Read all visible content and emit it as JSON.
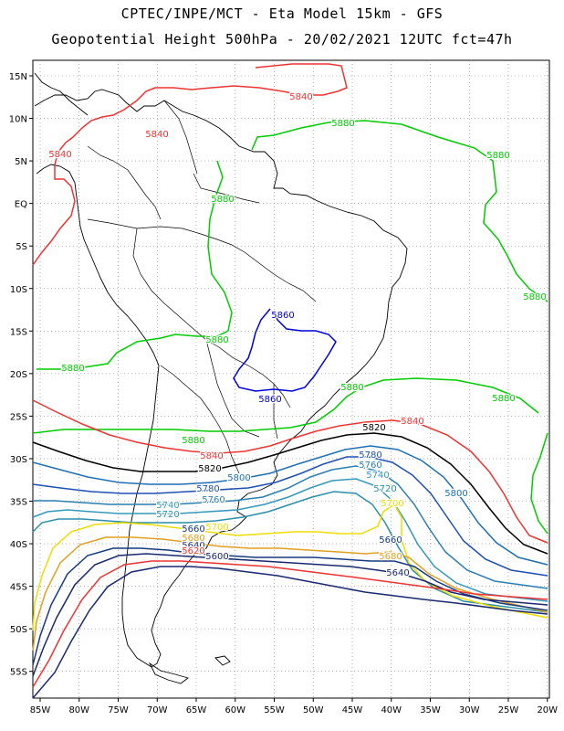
{
  "title_line1": "CPTEC/INPE/MCT  -  Eta Model 15km  -  GFS",
  "title_line2": "Geopotential Height 500hPa  -  20/02/2021 12UTC fct=47h",
  "lat_labels": [
    "15N",
    "10N",
    "5N",
    "EQ",
    "5S",
    "10S",
    "15S",
    "20S",
    "25S",
    "30S",
    "35S",
    "40S",
    "45S",
    "50S",
    "55S"
  ],
  "lon_labels": [
    "85W",
    "80W",
    "75W",
    "70W",
    "65W",
    "60W",
    "55W",
    "50W",
    "45W",
    "40W",
    "35W",
    "30W",
    "25W",
    "20W"
  ],
  "contour_colors": {
    "5880": "#00cc00",
    "5860": "#0000dd",
    "5840": "#ee3333",
    "5820": "#000000",
    "5800": "#1f6fb4",
    "5780": "#1f4fb4",
    "5760": "#2a7fb0",
    "5740": "#3399bb",
    "5720": "#2a8fa8",
    "5700": "#eedd00",
    "5680": "#e0a020",
    "5660": "#163a80",
    "5640": "#1a2870"
  },
  "contour_labels": [
    {
      "text": "5840",
      "color": "#ee3333"
    },
    {
      "text": "5840",
      "color": "#ee3333"
    },
    {
      "text": "5840",
      "color": "#ee3333"
    },
    {
      "text": "5880",
      "color": "#00cc00"
    },
    {
      "text": "5880",
      "color": "#00cc00"
    },
    {
      "text": "5880",
      "color": "#00cc00"
    },
    {
      "text": "5880",
      "color": "#00cc00"
    },
    {
      "text": "5880",
      "color": "#00cc00"
    },
    {
      "text": "5880",
      "color": "#00cc00"
    },
    {
      "text": "5880",
      "color": "#00cc00"
    },
    {
      "text": "5880",
      "color": "#00cc00"
    },
    {
      "text": "5880",
      "color": "#00cc00"
    },
    {
      "text": "5860",
      "color": "#0000dd"
    },
    {
      "text": "5860",
      "color": "#0000dd"
    },
    {
      "text": "5840",
      "color": "#ee3333"
    },
    {
      "text": "5820",
      "color": "#000000"
    },
    {
      "text": "5840",
      "color": "#ee3333"
    },
    {
      "text": "5820",
      "color": "#000000"
    },
    {
      "text": "5800",
      "color": "#1f6fb4"
    },
    {
      "text": "5780",
      "color": "#1f4fb4"
    },
    {
      "text": "5760",
      "color": "#2a7fb0"
    },
    {
      "text": "5740",
      "color": "#3399bb"
    },
    {
      "text": "5720",
      "color": "#2a8fa8"
    },
    {
      "text": "5800",
      "color": "#1f6fb4"
    },
    {
      "text": "5780",
      "color": "#1f4fb4"
    },
    {
      "text": "5760",
      "color": "#2a7fb0"
    },
    {
      "text": "5740",
      "color": "#3399bb"
    },
    {
      "text": "5720",
      "color": "#2a8fa8"
    },
    {
      "text": "5700",
      "color": "#eedd00"
    },
    {
      "text": "5700",
      "color": "#eedd00"
    },
    {
      "text": "5680",
      "color": "#e0a020"
    },
    {
      "text": "5660",
      "color": "#163a80"
    },
    {
      "text": "5640",
      "color": "#1a2870"
    },
    {
      "text": "5620",
      "color": "#ee3333"
    },
    {
      "text": "5600",
      "color": "#1a2870"
    },
    {
      "text": "5660",
      "color": "#163a80"
    },
    {
      "text": "5680",
      "color": "#e0a020"
    },
    {
      "text": "5640",
      "color": "#1a2870"
    }
  ]
}
